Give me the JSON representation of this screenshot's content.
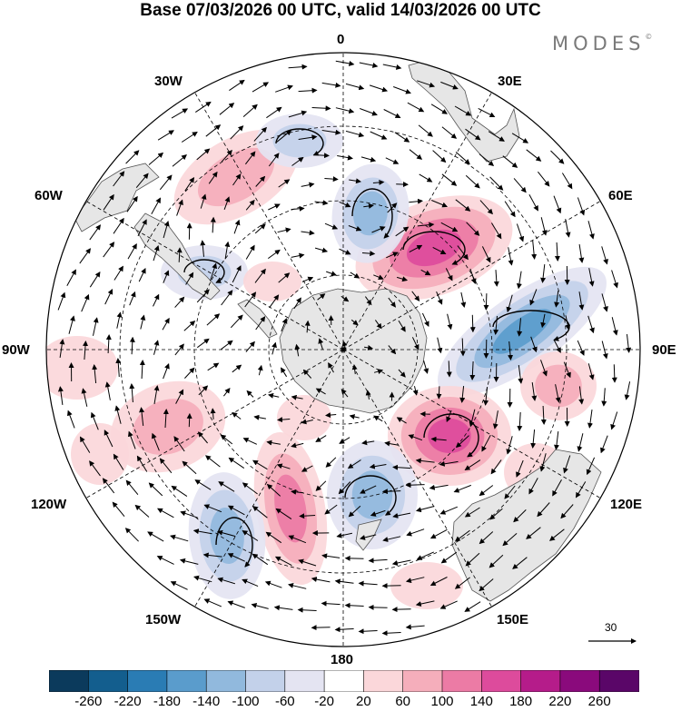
{
  "title": "Base 07/03/2026 00 UTC, valid 14/03/2026 00 UTC",
  "logo": "MODES",
  "logo_mark": "©",
  "longitude_labels": {
    "lon_0": "0",
    "lon_30e": "30E",
    "lon_60e": "60E",
    "lon_90e": "90E",
    "lon_120e": "120E",
    "lon_150e": "150E",
    "lon_180": "180",
    "lon_150w": "150W",
    "lon_120w": "120W",
    "lon_90w": "90W",
    "lon_60w": "60W",
    "lon_30w": "30W"
  },
  "reference_vector": "30",
  "colorbar": {
    "levels": [
      "-260",
      "-220",
      "-180",
      "-140",
      "-100",
      "-60",
      "-20",
      "20",
      "60",
      "100",
      "140",
      "180",
      "220",
      "260"
    ],
    "colors": [
      "#0b3a5c",
      "#135e8e",
      "#2a7cb4",
      "#5a9ccc",
      "#91b9dd",
      "#c3d1ea",
      "#e4e4f2",
      "#ffffff",
      "#fbd7da",
      "#f5aebb",
      "#ec7ba5",
      "#dd4b9c",
      "#b51c8a",
      "#8a0a7c",
      "#5a0668"
    ]
  },
  "map_colors": {
    "land": "#e6e6e6",
    "coast": "#555555",
    "grid": "#000000"
  }
}
